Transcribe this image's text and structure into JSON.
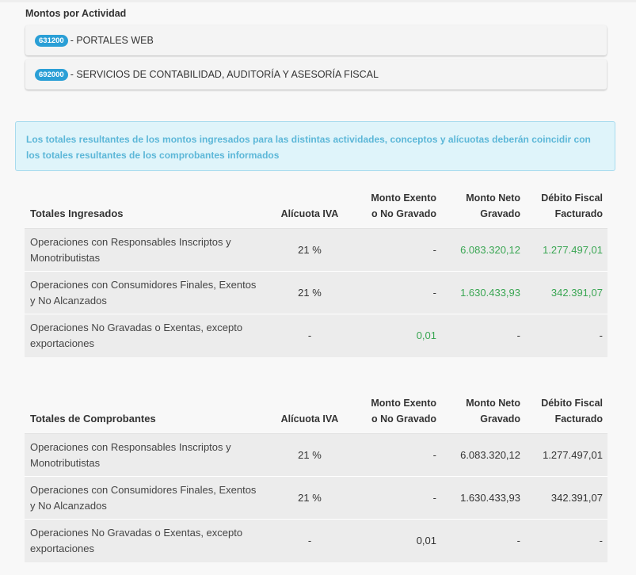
{
  "montos": {
    "title": "Montos por Actividad",
    "activities": [
      {
        "code": "631200",
        "label": " - PORTALES WEB"
      },
      {
        "code": "692000",
        "label": " - SERVICIOS DE CONTABILIDAD, AUDITORÍA Y ASESORÍA FISCAL"
      }
    ]
  },
  "info_message": "Los totales resultantes de los montos ingresados para las distintas actividades, conceptos y alícuotas deberán coincidir con los totales resultantes de los comprobantes informados",
  "ingresados": {
    "headers": {
      "title": "Totales Ingresados",
      "alicuota": "Alícuota IVA",
      "exento_1": "Monto Exento",
      "exento_2": "o No Gravado",
      "neto_1": "Monto Neto",
      "neto_2": "Gravado",
      "debito_1": "Débito Fiscal",
      "debito_2": "Facturado"
    },
    "rows": [
      {
        "concepto": "Operaciones con Responsables Inscriptos y Monotributistas",
        "alicuota": "21 %",
        "exento": "-",
        "neto": "6.083.320,12",
        "debito": "1.277.497,01"
      },
      {
        "concepto": "Operaciones con Consumidores Finales, Exentos y No Alcanzados",
        "alicuota": "21 %",
        "exento": "-",
        "neto": "1.630.433,93",
        "debito": "342.391,07"
      },
      {
        "concepto": "Operaciones No Gravadas o Exentas, excepto exportaciones",
        "alicuota": "-",
        "exento": "0,01",
        "neto": "-",
        "debito": "-"
      }
    ]
  },
  "comprobantes": {
    "headers": {
      "title": "Totales de Comprobantes",
      "alicuota": "Alícuota IVA",
      "exento_1": "Monto Exento",
      "exento_2": "o No Gravado",
      "neto_1": "Monto Neto",
      "neto_2": "Gravado",
      "debito_1": "Débito Fiscal",
      "debito_2": "Facturado"
    },
    "rows": [
      {
        "concepto": "Operaciones con Responsables Inscriptos y Monotributistas",
        "alicuota": "21 %",
        "exento": "-",
        "neto": "6.083.320,12",
        "debito": "1.277.497,01"
      },
      {
        "concepto": "Operaciones con Consumidores Finales, Exentos y No Alcanzados",
        "alicuota": "21 %",
        "exento": "-",
        "neto": "1.630.433,93",
        "debito": "342.391,07"
      },
      {
        "concepto": "Operaciones No Gravadas o Exentas, excepto exportaciones",
        "alicuota": "-",
        "exento": "0,01",
        "neto": "-",
        "debito": "-"
      }
    ]
  },
  "colors": {
    "badge": "#2a9fd6",
    "info_bg": "#dff4fa",
    "info_text": "#5cb7d8",
    "highlight_value": "#3aa653"
  }
}
